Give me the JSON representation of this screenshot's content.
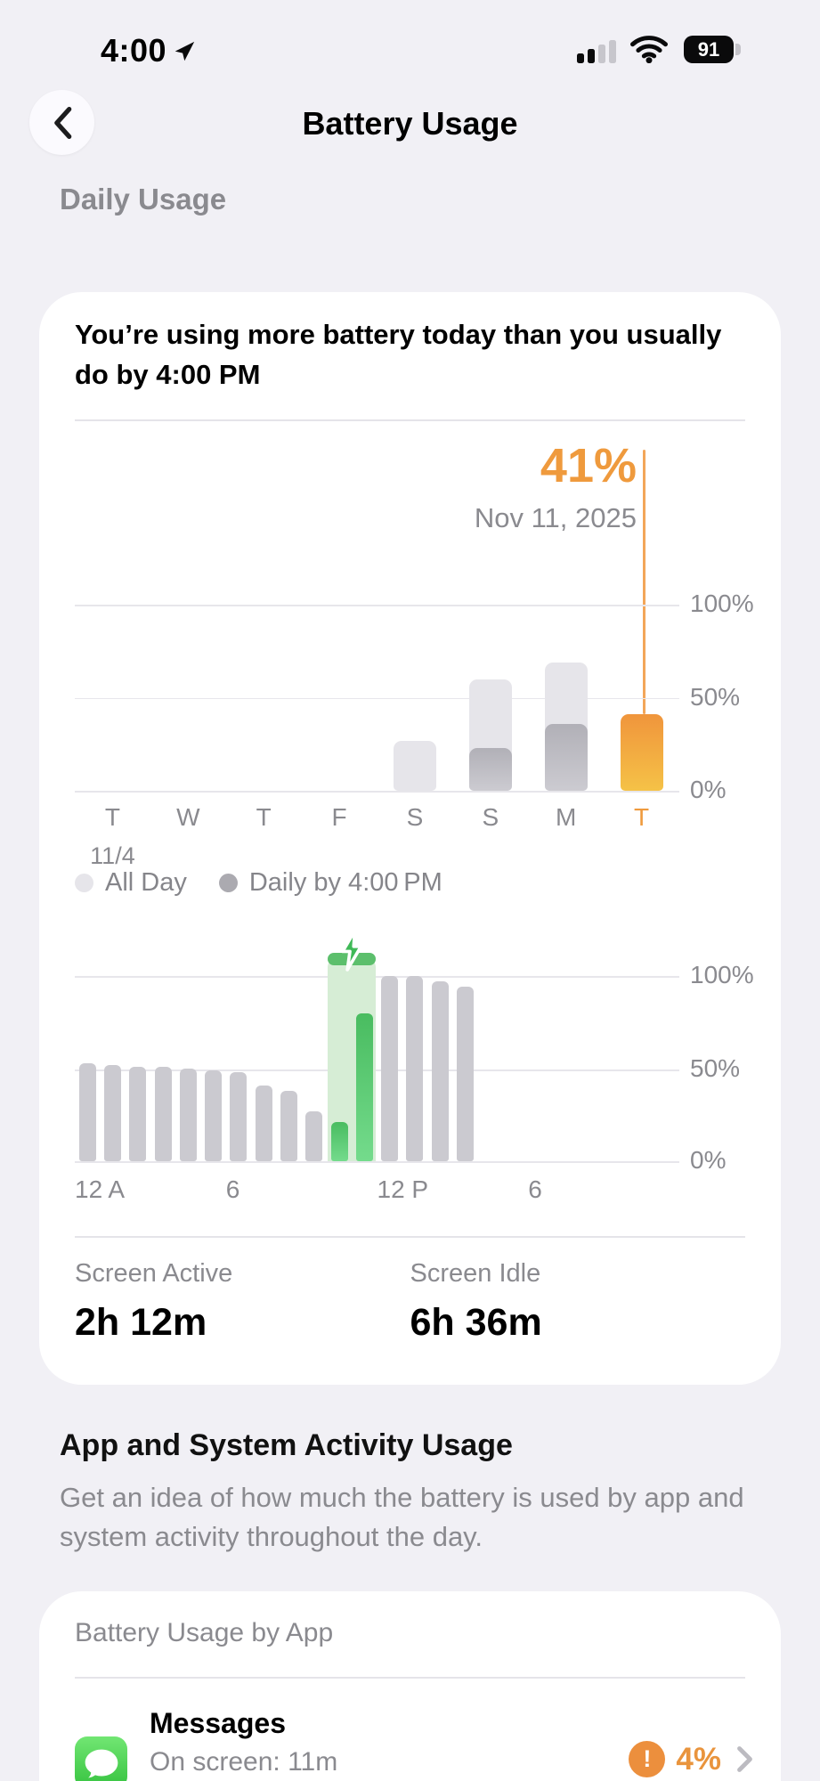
{
  "status_bar": {
    "time": "4:00",
    "battery_percent": "91"
  },
  "nav": {
    "title": "Battery Usage"
  },
  "sections": {
    "daily_label": "Daily Usage",
    "activity_title": "App and System Activity Usage",
    "activity_description": "Get an idea of how much the battery is used by app and system activity throughout the day."
  },
  "daily_card": {
    "headline": "You’re using more battery today than you usually do by 4:00 PM",
    "screen_active_label": "Screen Active",
    "screen_active_value": "2h 12m",
    "screen_idle_label": "Screen Idle",
    "screen_idle_value": "6h 36m"
  },
  "legend": {
    "all_day": "All Day",
    "daily_by": "Daily by 4:00 PM"
  },
  "colors": {
    "accent_orange": "#ef9a3d",
    "orange_bar_top": "#f0953c",
    "orange_bar_bottom": "#f5c247",
    "light_gray_bar": "#e6e5ea",
    "dark_gray_bar": "#b1b0b7",
    "hourly_gray_bar": "#cbcad0",
    "charge_green": "#49bc60",
    "charge_light_green": "#d6edd5",
    "warning_orange": "#ec8f3d"
  },
  "chart_data": [
    {
      "type": "bar",
      "title": "Daily battery usage, last 8 days",
      "categories": [
        "T",
        "W",
        "T",
        "F",
        "S",
        "S",
        "M",
        "T"
      ],
      "x_sublabel": {
        "index": 0,
        "text": "11/4"
      },
      "series": [
        {
          "name": "All Day",
          "values": [
            0,
            0,
            0,
            0,
            27,
            60,
            69,
            0
          ]
        },
        {
          "name": "Daily by 4:00 PM",
          "values": [
            0,
            0,
            0,
            0,
            0,
            23,
            36,
            41
          ]
        }
      ],
      "today_index": 7,
      "callout": {
        "value": "41%",
        "date": "Nov 11, 2025"
      },
      "yticks": [
        "100%",
        "50%",
        "0%"
      ],
      "ylim": [
        0,
        100
      ],
      "legend_position": "bottom-left",
      "grid": true
    },
    {
      "type": "bar",
      "title": "Battery level today by hour",
      "slots": 24,
      "values": [
        53,
        52,
        51,
        51,
        50,
        49,
        48,
        41,
        38,
        27,
        21,
        80,
        100,
        100,
        97,
        94,
        null,
        null,
        null,
        null,
        null,
        null,
        null,
        null
      ],
      "charging_slots": [
        10,
        11
      ],
      "x_ticks": [
        {
          "slot": 0,
          "label": "12 A"
        },
        {
          "slot": 6,
          "label": "6"
        },
        {
          "slot": 12,
          "label": "12 P"
        },
        {
          "slot": 18,
          "label": "6"
        }
      ],
      "yticks": [
        "100%",
        "50%",
        "0%"
      ],
      "ylim": [
        0,
        110
      ],
      "grid": true
    }
  ],
  "by_app_card": {
    "header": "Battery Usage by App",
    "apps": [
      {
        "name": "Messages",
        "detail": "On screen: 11m",
        "percent": "4%",
        "warning": true
      }
    ]
  }
}
